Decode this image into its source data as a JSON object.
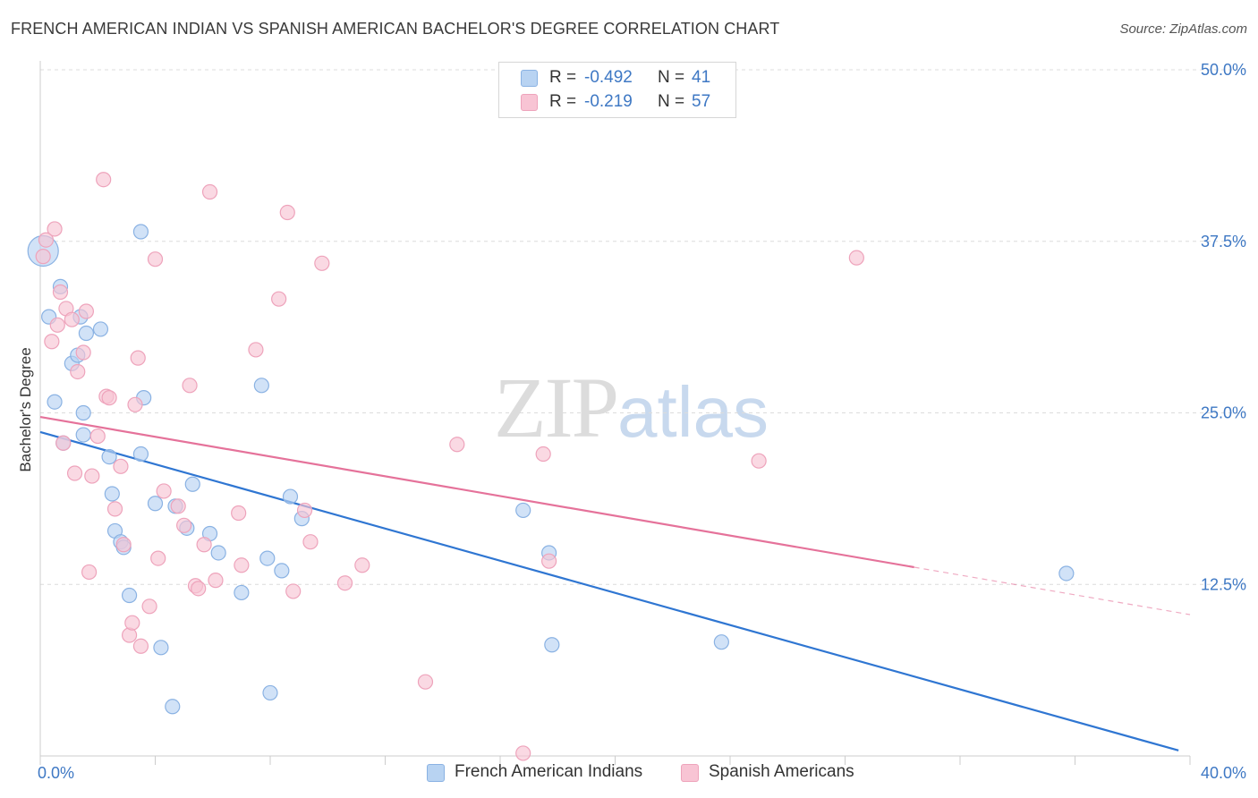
{
  "title": "FRENCH AMERICAN INDIAN VS SPANISH AMERICAN BACHELOR'S DEGREE CORRELATION CHART",
  "source": "Source: ZipAtlas.com",
  "watermark": {
    "zip": "ZIP",
    "atlas": "atlas"
  },
  "legend": {
    "blue": {
      "r_label": "R =",
      "r_value": "-0.492",
      "n_label": "N =",
      "n_value": "41"
    },
    "pink": {
      "r_label": "R =",
      "r_value": "-0.219",
      "n_label": "N =",
      "n_value": "57"
    }
  },
  "bottom_legend": {
    "blue": "French American Indians",
    "pink": "Spanish Americans"
  },
  "colors": {
    "blue_fill": "#b8d3f2",
    "blue_stroke": "#8ab2e3",
    "blue_line": "#2f76d2",
    "pink_fill": "#f8c4d4",
    "pink_stroke": "#eea3bb",
    "pink_line": "#e5729a",
    "grid": "#dcdcdc",
    "axis_text": "#3e78c4"
  },
  "chart_data": {
    "type": "scatter",
    "title": "FRENCH AMERICAN INDIAN VS SPANISH AMERICAN BACHELOR'S DEGREE CORRELATION CHART",
    "xlabel": "",
    "ylabel": "Bachelor's Degree",
    "xlim": [
      0,
      40
    ],
    "ylim": [
      0,
      50
    ],
    "x_tick_labels": [
      "0.0%",
      "40.0%"
    ],
    "y_ticks": [
      12.5,
      25.0,
      37.5,
      50.0
    ],
    "y_tick_labels": [
      "12.5%",
      "25.0%",
      "37.5%",
      "50.0%"
    ],
    "grid": true,
    "series": [
      {
        "name": "French American Indians",
        "R": -0.492,
        "N": 41,
        "trend": {
          "x": [
            0,
            39.6
          ],
          "y": [
            23.6,
            0.4
          ],
          "dashed_from": null
        },
        "points": [
          {
            "x": 0.1,
            "y": 36.8,
            "big": true
          },
          {
            "x": 0.3,
            "y": 32.0
          },
          {
            "x": 0.5,
            "y": 25.8
          },
          {
            "x": 0.7,
            "y": 34.2
          },
          {
            "x": 0.8,
            "y": 22.8
          },
          {
            "x": 1.1,
            "y": 28.6
          },
          {
            "x": 1.3,
            "y": 29.2
          },
          {
            "x": 1.4,
            "y": 32.0
          },
          {
            "x": 1.5,
            "y": 25.0
          },
          {
            "x": 1.5,
            "y": 23.4
          },
          {
            "x": 1.6,
            "y": 30.8
          },
          {
            "x": 2.1,
            "y": 31.1
          },
          {
            "x": 2.4,
            "y": 21.8
          },
          {
            "x": 2.5,
            "y": 19.1
          },
          {
            "x": 2.6,
            "y": 16.4
          },
          {
            "x": 2.8,
            "y": 15.6
          },
          {
            "x": 2.9,
            "y": 15.2
          },
          {
            "x": 3.1,
            "y": 11.7
          },
          {
            "x": 3.5,
            "y": 38.2
          },
          {
            "x": 3.5,
            "y": 22.0
          },
          {
            "x": 3.6,
            "y": 26.1
          },
          {
            "x": 4.0,
            "y": 18.4
          },
          {
            "x": 4.2,
            "y": 7.9
          },
          {
            "x": 4.6,
            "y": 3.6
          },
          {
            "x": 4.7,
            "y": 18.2
          },
          {
            "x": 5.1,
            "y": 16.6
          },
          {
            "x": 5.3,
            "y": 19.8
          },
          {
            "x": 5.9,
            "y": 16.2
          },
          {
            "x": 6.2,
            "y": 14.8
          },
          {
            "x": 7.0,
            "y": 11.9
          },
          {
            "x": 7.7,
            "y": 27.0
          },
          {
            "x": 7.9,
            "y": 14.4
          },
          {
            "x": 8.0,
            "y": 4.6
          },
          {
            "x": 8.4,
            "y": 13.5
          },
          {
            "x": 8.7,
            "y": 18.9
          },
          {
            "x": 9.1,
            "y": 17.3
          },
          {
            "x": 16.8,
            "y": 17.9
          },
          {
            "x": 17.7,
            "y": 14.8
          },
          {
            "x": 17.8,
            "y": 8.1
          },
          {
            "x": 23.7,
            "y": 8.3
          },
          {
            "x": 35.7,
            "y": 13.3
          }
        ]
      },
      {
        "name": "Spanish Americans",
        "R": -0.219,
        "N": 57,
        "trend": {
          "x": [
            0,
            40
          ],
          "y": [
            24.7,
            10.3
          ],
          "dashed_from": 30.4
        },
        "points": [
          {
            "x": 0.1,
            "y": 36.4
          },
          {
            "x": 0.2,
            "y": 37.6
          },
          {
            "x": 0.4,
            "y": 30.2
          },
          {
            "x": 0.5,
            "y": 38.4
          },
          {
            "x": 0.6,
            "y": 31.4
          },
          {
            "x": 0.7,
            "y": 33.8
          },
          {
            "x": 0.8,
            "y": 22.8
          },
          {
            "x": 0.9,
            "y": 32.6
          },
          {
            "x": 1.1,
            "y": 31.8
          },
          {
            "x": 1.2,
            "y": 20.6
          },
          {
            "x": 1.3,
            "y": 28.0
          },
          {
            "x": 1.5,
            "y": 29.4
          },
          {
            "x": 1.6,
            "y": 32.4
          },
          {
            "x": 1.7,
            "y": 13.4
          },
          {
            "x": 1.8,
            "y": 20.4
          },
          {
            "x": 2.0,
            "y": 23.3
          },
          {
            "x": 2.2,
            "y": 42.0
          },
          {
            "x": 2.3,
            "y": 26.2
          },
          {
            "x": 2.4,
            "y": 26.1
          },
          {
            "x": 2.6,
            "y": 18.0
          },
          {
            "x": 2.8,
            "y": 21.1
          },
          {
            "x": 2.9,
            "y": 15.4
          },
          {
            "x": 3.1,
            "y": 8.8
          },
          {
            "x": 3.2,
            "y": 9.7
          },
          {
            "x": 3.3,
            "y": 25.6
          },
          {
            "x": 3.4,
            "y": 29.0
          },
          {
            "x": 3.5,
            "y": 8.0
          },
          {
            "x": 3.8,
            "y": 10.9
          },
          {
            "x": 4.0,
            "y": 36.2
          },
          {
            "x": 4.1,
            "y": 14.4
          },
          {
            "x": 4.3,
            "y": 19.3
          },
          {
            "x": 4.8,
            "y": 18.2
          },
          {
            "x": 5.0,
            "y": 16.8
          },
          {
            "x": 5.2,
            "y": 27.0
          },
          {
            "x": 5.4,
            "y": 12.4
          },
          {
            "x": 5.5,
            "y": 12.2
          },
          {
            "x": 5.7,
            "y": 15.4
          },
          {
            "x": 5.9,
            "y": 41.1
          },
          {
            "x": 6.1,
            "y": 12.8
          },
          {
            "x": 6.9,
            "y": 17.7
          },
          {
            "x": 7.0,
            "y": 13.9
          },
          {
            "x": 7.5,
            "y": 29.6
          },
          {
            "x": 8.3,
            "y": 33.3
          },
          {
            "x": 8.6,
            "y": 39.6
          },
          {
            "x": 8.8,
            "y": 12.0
          },
          {
            "x": 9.2,
            "y": 17.9
          },
          {
            "x": 9.4,
            "y": 15.6
          },
          {
            "x": 9.8,
            "y": 35.9
          },
          {
            "x": 10.6,
            "y": 12.6
          },
          {
            "x": 11.2,
            "y": 13.9
          },
          {
            "x": 13.4,
            "y": 5.4
          },
          {
            "x": 14.5,
            "y": 22.7
          },
          {
            "x": 16.8,
            "y": 0.2
          },
          {
            "x": 17.5,
            "y": 22.0
          },
          {
            "x": 17.7,
            "y": 14.2
          },
          {
            "x": 25.0,
            "y": 21.5
          },
          {
            "x": 28.4,
            "y": 36.3
          }
        ]
      }
    ]
  }
}
